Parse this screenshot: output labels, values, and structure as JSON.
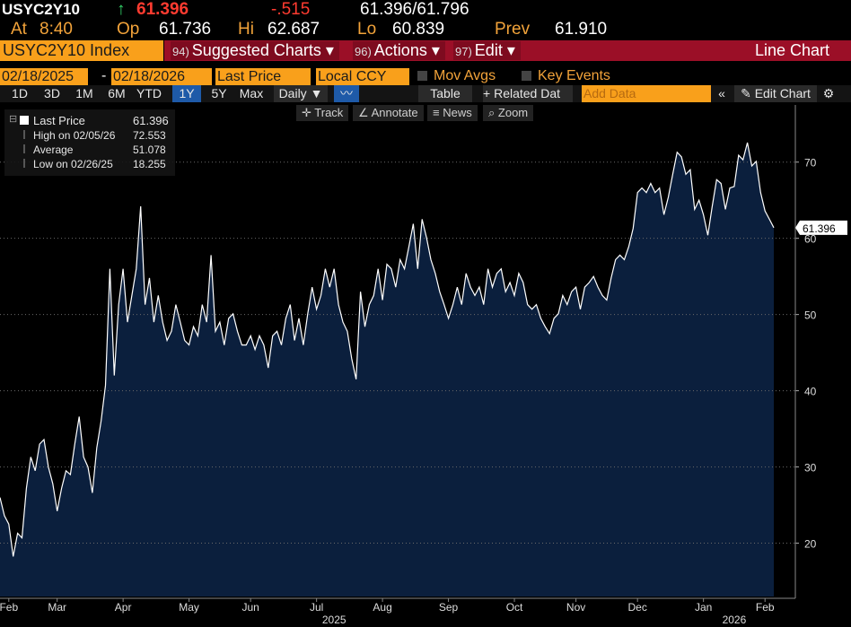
{
  "header": {
    "ticker": "USYC2Y10",
    "arrow": "↑",
    "last": "61.396",
    "change": "-.515",
    "bid_ask": "61.396/61.796",
    "time_label": "At",
    "time": "8:40",
    "open_label": "Op",
    "open": "61.736",
    "high_label": "Hi",
    "high": "62.687",
    "low_label": "Lo",
    "low": "60.839",
    "prev_label": "Prev",
    "prev": "61.910"
  },
  "toolbar": {
    "security": "USYC2Y10 Index",
    "menus": [
      {
        "num": "94)",
        "label": "Suggested Charts"
      },
      {
        "num": "96)",
        "label": "Actions"
      },
      {
        "num": "97)",
        "label": "Edit"
      }
    ],
    "chart_type": "Line Chart"
  },
  "controls": {
    "start_date": "02/18/2025",
    "separator": "-",
    "end_date": "02/18/2026",
    "field": "Last Price",
    "currency": "Local CCY",
    "mov_avgs": "Mov Avgs",
    "key_events": "Key Events"
  },
  "range_bar": {
    "periods": [
      "1D",
      "3D",
      "1M",
      "6M",
      "YTD",
      "1Y",
      "5Y",
      "Max"
    ],
    "active": "1Y",
    "frequency": "Daily",
    "table": "Table",
    "related_data": "Related Dat",
    "add_data": "Add Data",
    "edit_chart": "Edit Chart"
  },
  "chart_tools": [
    "Track",
    "Annotate",
    "News",
    "Zoom"
  ],
  "chart_data": {
    "type": "line",
    "color": "#ffffff",
    "fill": "#0b1f3d",
    "grid": true,
    "legend": [
      {
        "label": "Last Price",
        "value": 61.396
      },
      {
        "label": "High on 02/05/26",
        "value": 72.553
      },
      {
        "label": "Average",
        "value": 51.078
      },
      {
        "label": "Low on 02/26/25",
        "value": 18.255
      }
    ],
    "values": [
      26,
      23.6,
      22.5,
      18.255,
      21.3,
      20.7,
      27.2,
      31.3,
      29.5,
      33,
      33.6,
      30,
      27.8,
      24.2,
      27.2,
      29.5,
      29,
      33,
      36.6,
      31.3,
      30,
      26.6,
      32.5,
      36,
      40.7,
      56,
      42,
      51.3,
      56,
      49,
      52.5,
      56,
      64.2,
      51.3,
      54.8,
      49,
      52.5,
      49,
      46.6,
      47.8,
      51.3,
      49,
      46.6,
      46,
      48.4,
      47.2,
      51.3,
      49,
      57.8,
      47.8,
      49,
      46,
      49.5,
      50.1,
      47.8,
      46,
      46,
      47.2,
      45.4,
      47.2,
      46,
      43,
      47.2,
      47.8,
      46,
      49.5,
      51.3,
      46.6,
      49.5,
      46,
      50.1,
      53.6,
      50.7,
      52.5,
      56,
      53.6,
      56,
      51.3,
      49,
      47.8,
      44.2,
      41.5,
      53,
      48.4,
      51.3,
      52.5,
      56,
      51.9,
      56.6,
      56,
      53.6,
      57.2,
      56,
      58.9,
      61.9,
      56,
      62.5,
      60.1,
      57.2,
      55.4,
      53,
      51.3,
      49.5,
      51.3,
      53.6,
      51.3,
      55.4,
      53.6,
      52.5,
      53.6,
      51.3,
      56,
      53.6,
      55.4,
      56,
      53,
      54.2,
      52.5,
      55.4,
      54.2,
      51.3,
      50.7,
      51.3,
      49.5,
      48.4,
      47.5,
      49.5,
      50.1,
      52.5,
      51.3,
      53,
      53.6,
      50.7,
      53.6,
      54.2,
      55,
      53.6,
      52.5,
      51.9,
      54.8,
      57.2,
      57.8,
      57.2,
      58.9,
      61.3,
      66,
      66.6,
      66,
      67.2,
      66,
      66.6,
      63.1,
      65.4,
      68.4,
      71.3,
      70.7,
      68.4,
      69,
      63.8,
      65,
      63.1,
      60.4,
      64.2,
      67.7,
      67.2,
      63.8,
      66.6,
      66.8,
      70.9,
      70.3,
      72.553,
      69.5,
      70.1,
      66,
      63.6,
      62.5,
      61.396
    ],
    "xlim": [
      0,
      176
    ],
    "xticks": [
      {
        "value": 2,
        "label": "Feb"
      },
      {
        "value": 13,
        "label": "Mar"
      },
      {
        "value": 28,
        "label": "Apr"
      },
      {
        "value": 43,
        "label": "May"
      },
      {
        "value": 57,
        "label": "Jun"
      },
      {
        "value": 72,
        "label": "Jul"
      },
      {
        "value": 87,
        "label": "Aug"
      },
      {
        "value": 102,
        "label": "Sep"
      },
      {
        "value": 117,
        "label": "Oct"
      },
      {
        "value": 131,
        "label": "Nov"
      },
      {
        "value": 145,
        "label": "Dec"
      },
      {
        "value": 160,
        "label": "Jan"
      },
      {
        "value": 174,
        "label": "Feb"
      }
    ],
    "year_ticks": [
      {
        "value": 76,
        "label": "2025"
      },
      {
        "value": 167,
        "label": "2026"
      }
    ],
    "ylim": [
      13,
      77.5
    ],
    "yticks": [
      20,
      30,
      40,
      50,
      60,
      70
    ]
  }
}
